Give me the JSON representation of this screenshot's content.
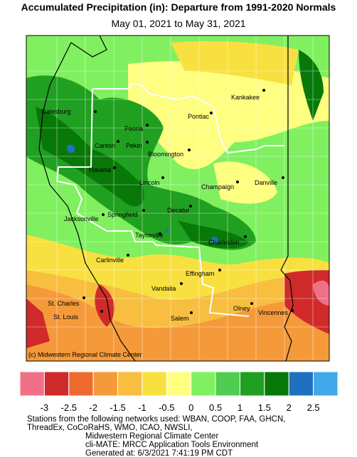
{
  "header": {
    "title": "Accumulated Precipitation (in): Departure from 1991-2020 Normals",
    "subtitle": "May 01, 2021 to May 31, 2021"
  },
  "map": {
    "cities": [
      "Kankakee",
      "Galesburg",
      "Pontiac",
      "Peoria",
      "Canton",
      "Pekin",
      "Bloomington",
      "Havana",
      "Champaign",
      "Danville",
      "Lincoln",
      "Jacksonville",
      "Springfield",
      "Decatur",
      "Taylorville",
      "Charleston",
      "Carlinville",
      "Effingham",
      "Vandalia",
      "St. Charles",
      "St. Louis",
      "Salem",
      "Olney",
      "Vincennes"
    ],
    "credit": "(c) Midwestern Regional Climate Center"
  },
  "legend": {
    "colors": [
      "#f07088",
      "#d02a2a",
      "#f06a30",
      "#f59a3a",
      "#f8be40",
      "#f8e040",
      "#fefe80",
      "#80f060",
      "#50cc50",
      "#20a020",
      "#087808",
      "#2070c0",
      "#40a8e8"
    ],
    "ticks": [
      -3,
      -2.5,
      -2,
      -1.5,
      -1,
      -0.5,
      0,
      0.5,
      1,
      1.5,
      2,
      2.5
    ]
  },
  "footer": {
    "lines": [
      "Stations from the following networks used: WBAN, COOP, FAA, GHCN,",
      "ThreadEx, CoCoRaHS, WMO, ICAO, NWSLI,",
      "Midwestern Regional Climate Center",
      "cli-MATE: MRCC Application Tools Environment",
      "Generated at: 6/3/2021 7:41:19 PM CDT"
    ]
  }
}
